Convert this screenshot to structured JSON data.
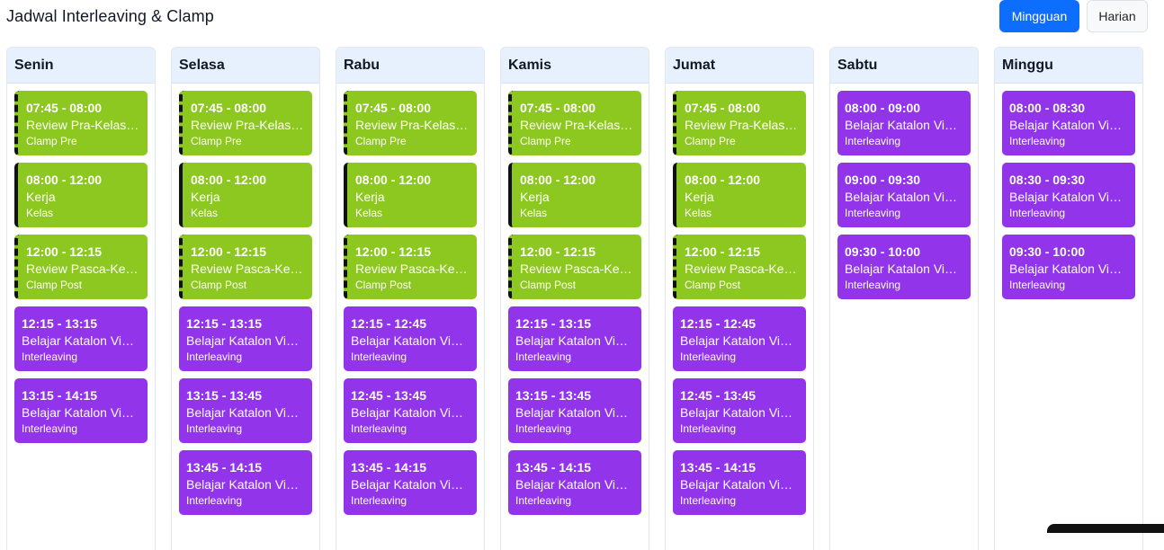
{
  "header": {
    "title": "Jadwal Interleaving & Clamp",
    "weekly_label": "Mingguan",
    "daily_label": "Harian"
  },
  "colors": {
    "clamp_green": "#8cc81f",
    "interleaving_purple": "#9134ea",
    "day_header_bg": "#e7f0fd",
    "primary_button": "#0d6efd"
  },
  "days": [
    {
      "name": "Senin",
      "events": [
        {
          "time": "07:45 - 08:00",
          "title": "Review Pra-Kelas K...",
          "tag": "Clamp Pre",
          "kind": "clamp-pre"
        },
        {
          "time": "08:00 - 12:00",
          "title": "Kerja",
          "tag": "Kelas",
          "kind": "kelas"
        },
        {
          "time": "12:00 - 12:15",
          "title": "Review Pasca-Kelas...",
          "tag": "Clamp Post",
          "kind": "clamp-post"
        },
        {
          "time": "12:15 - 13:15",
          "title": "Belajar Katalon Vide...",
          "tag": "Interleaving",
          "kind": "interleaving"
        },
        {
          "time": "13:15 - 14:15",
          "title": "Belajar Katalon Vide...",
          "tag": "Interleaving",
          "kind": "interleaving"
        }
      ]
    },
    {
      "name": "Selasa",
      "events": [
        {
          "time": "07:45 - 08:00",
          "title": "Review Pra-Kelas K...",
          "tag": "Clamp Pre",
          "kind": "clamp-pre"
        },
        {
          "time": "08:00 - 12:00",
          "title": "Kerja",
          "tag": "Kelas",
          "kind": "kelas"
        },
        {
          "time": "12:00 - 12:15",
          "title": "Review Pasca-Kelas...",
          "tag": "Clamp Post",
          "kind": "clamp-post"
        },
        {
          "time": "12:15 - 13:15",
          "title": "Belajar Katalon Vide...",
          "tag": "Interleaving",
          "kind": "interleaving"
        },
        {
          "time": "13:15 - 13:45",
          "title": "Belajar Katalon Vide...",
          "tag": "Interleaving",
          "kind": "interleaving"
        },
        {
          "time": "13:45 - 14:15",
          "title": "Belajar Katalon Vide...",
          "tag": "Interleaving",
          "kind": "interleaving"
        }
      ]
    },
    {
      "name": "Rabu",
      "events": [
        {
          "time": "07:45 - 08:00",
          "title": "Review Pra-Kelas K...",
          "tag": "Clamp Pre",
          "kind": "clamp-pre"
        },
        {
          "time": "08:00 - 12:00",
          "title": "Kerja",
          "tag": "Kelas",
          "kind": "kelas"
        },
        {
          "time": "12:00 - 12:15",
          "title": "Review Pasca-Kelas...",
          "tag": "Clamp Post",
          "kind": "clamp-post"
        },
        {
          "time": "12:15 - 12:45",
          "title": "Belajar Katalon Vide...",
          "tag": "Interleaving",
          "kind": "interleaving"
        },
        {
          "time": "12:45 - 13:45",
          "title": "Belajar Katalon Vide...",
          "tag": "Interleaving",
          "kind": "interleaving"
        },
        {
          "time": "13:45 - 14:15",
          "title": "Belajar Katalon Vide...",
          "tag": "Interleaving",
          "kind": "interleaving"
        }
      ]
    },
    {
      "name": "Kamis",
      "events": [
        {
          "time": "07:45 - 08:00",
          "title": "Review Pra-Kelas K...",
          "tag": "Clamp Pre",
          "kind": "clamp-pre"
        },
        {
          "time": "08:00 - 12:00",
          "title": "Kerja",
          "tag": "Kelas",
          "kind": "kelas"
        },
        {
          "time": "12:00 - 12:15",
          "title": "Review Pasca-Kelas...",
          "tag": "Clamp Post",
          "kind": "clamp-post"
        },
        {
          "time": "12:15 - 13:15",
          "title": "Belajar Katalon Vide...",
          "tag": "Interleaving",
          "kind": "interleaving"
        },
        {
          "time": "13:15 - 13:45",
          "title": "Belajar Katalon Vide...",
          "tag": "Interleaving",
          "kind": "interleaving"
        },
        {
          "time": "13:45 - 14:15",
          "title": "Belajar Katalon Vide...",
          "tag": "Interleaving",
          "kind": "interleaving"
        }
      ]
    },
    {
      "name": "Jumat",
      "events": [
        {
          "time": "07:45 - 08:00",
          "title": "Review Pra-Kelas K...",
          "tag": "Clamp Pre",
          "kind": "clamp-pre"
        },
        {
          "time": "08:00 - 12:00",
          "title": "Kerja",
          "tag": "Kelas",
          "kind": "kelas"
        },
        {
          "time": "12:00 - 12:15",
          "title": "Review Pasca-Kelas...",
          "tag": "Clamp Post",
          "kind": "clamp-post"
        },
        {
          "time": "12:15 - 12:45",
          "title": "Belajar Katalon Vide...",
          "tag": "Interleaving",
          "kind": "interleaving"
        },
        {
          "time": "12:45 - 13:45",
          "title": "Belajar Katalon Vide...",
          "tag": "Interleaving",
          "kind": "interleaving"
        },
        {
          "time": "13:45 - 14:15",
          "title": "Belajar Katalon Vide...",
          "tag": "Interleaving",
          "kind": "interleaving"
        }
      ]
    },
    {
      "name": "Sabtu",
      "events": [
        {
          "time": "08:00 - 09:00",
          "title": "Belajar Katalon Vide...",
          "tag": "Interleaving",
          "kind": "interleaving"
        },
        {
          "time": "09:00 - 09:30",
          "title": "Belajar Katalon Vide...",
          "tag": "Interleaving",
          "kind": "interleaving"
        },
        {
          "time": "09:30 - 10:00",
          "title": "Belajar Katalon Vide...",
          "tag": "Interleaving",
          "kind": "interleaving"
        }
      ]
    },
    {
      "name": "Minggu",
      "events": [
        {
          "time": "08:00 - 08:30",
          "title": "Belajar Katalon Vide...",
          "tag": "Interleaving",
          "kind": "interleaving"
        },
        {
          "time": "08:30 - 09:30",
          "title": "Belajar Katalon Vide...",
          "tag": "Interleaving",
          "kind": "interleaving"
        },
        {
          "time": "09:30 - 10:00",
          "title": "Belajar Katalon Vide...",
          "tag": "Interleaving",
          "kind": "interleaving"
        }
      ]
    }
  ]
}
